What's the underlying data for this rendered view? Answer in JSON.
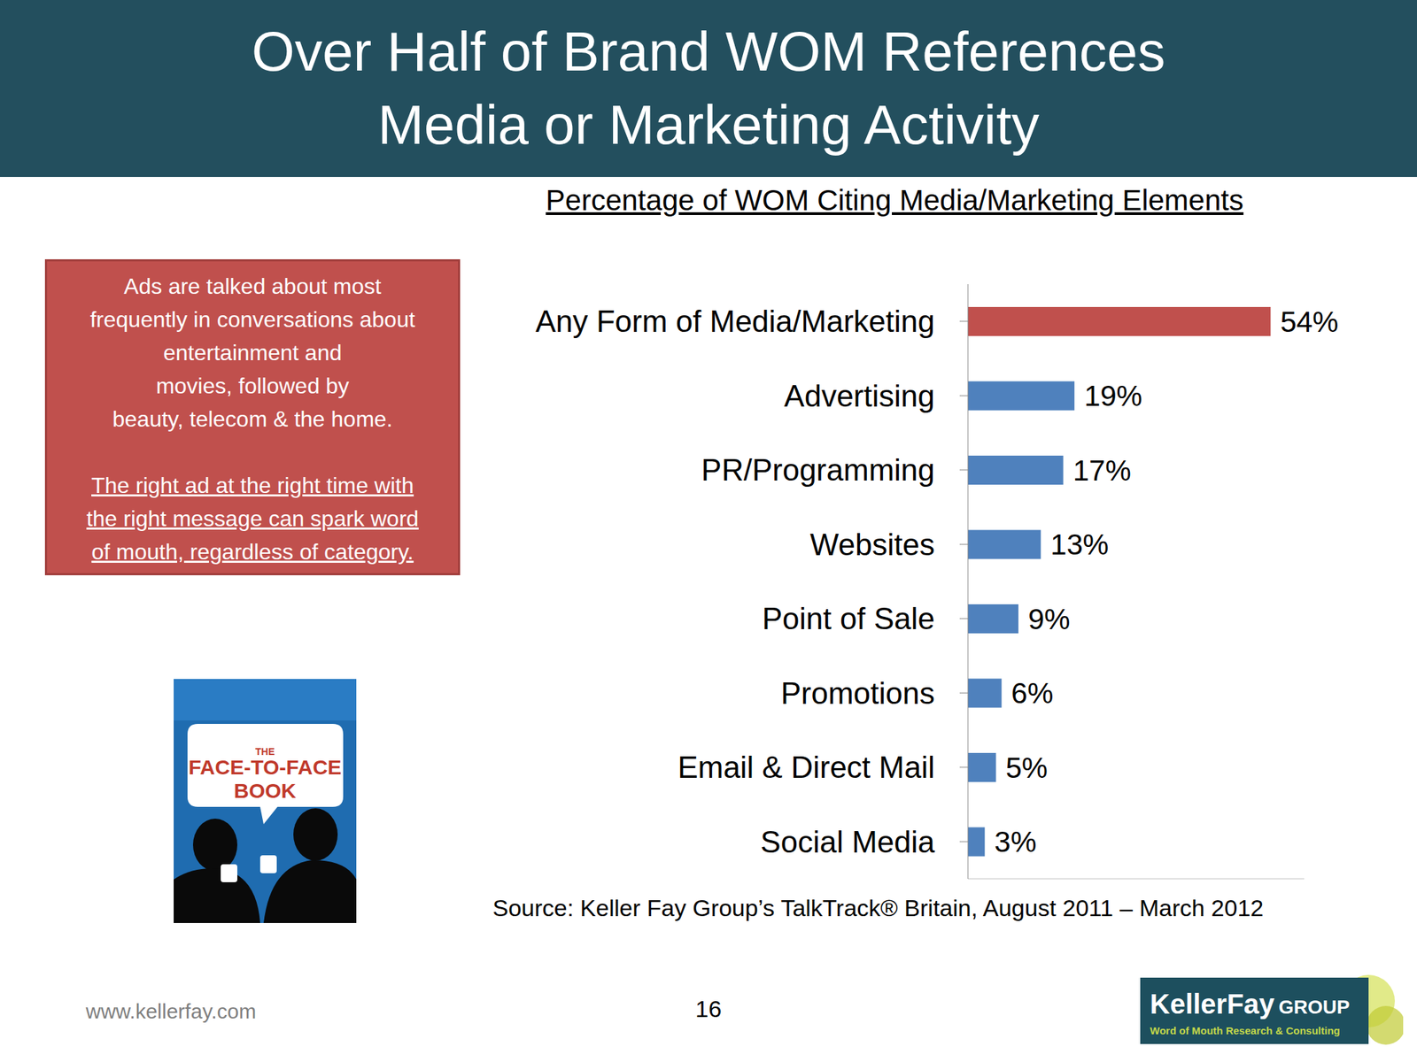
{
  "slide": {
    "title": [
      "Over Half of Brand WOM References",
      "Media or Marketing Activity"
    ],
    "callout": {
      "lines": [
        "Ads are talked about most",
        "frequently in conversations about",
        "entertainment and",
        "movies, followed by",
        "beauty, telecom & the home."
      ],
      "underlined_lines": [
        "The right ad at the right time with",
        "the right message can spark word",
        "of mouth, regardless of category."
      ]
    },
    "book": {
      "lines": [
        "THE",
        "FACE-TO-FACE",
        "BOOK"
      ]
    },
    "website": "www.kellerfay.com",
    "page": "16",
    "logo": {
      "name": "KellerFay",
      "group": "GROUP",
      "tagline": "Word of Mouth Research & Consulting"
    }
  },
  "chart_data": {
    "type": "bar",
    "title": "Percentage of WOM Citing Media/Marketing Elements",
    "orientation": "horizontal",
    "categories": [
      "Any Form of Media/Marketing",
      "Advertising",
      "PR/Programming",
      "Websites",
      "Point of Sale",
      "Promotions",
      "Email & Direct Mail",
      "Social Media"
    ],
    "values": [
      54,
      19,
      17,
      13,
      9,
      6,
      5,
      3
    ],
    "value_labels": [
      "54%",
      "19%",
      "17%",
      "13%",
      "9%",
      "6%",
      "5%",
      "3%"
    ],
    "colors": [
      "#c0504d",
      "#4f81bd",
      "#4f81bd",
      "#4f81bd",
      "#4f81bd",
      "#4f81bd",
      "#4f81bd",
      "#4f81bd"
    ],
    "data_labels": true,
    "tick_labels": "y",
    "grid": false,
    "xlim": [
      0,
      60
    ],
    "xticks": [],
    "source": "Source: Keller Fay Group’s TalkTrack® Britain, August 2011 – March 2012"
  }
}
